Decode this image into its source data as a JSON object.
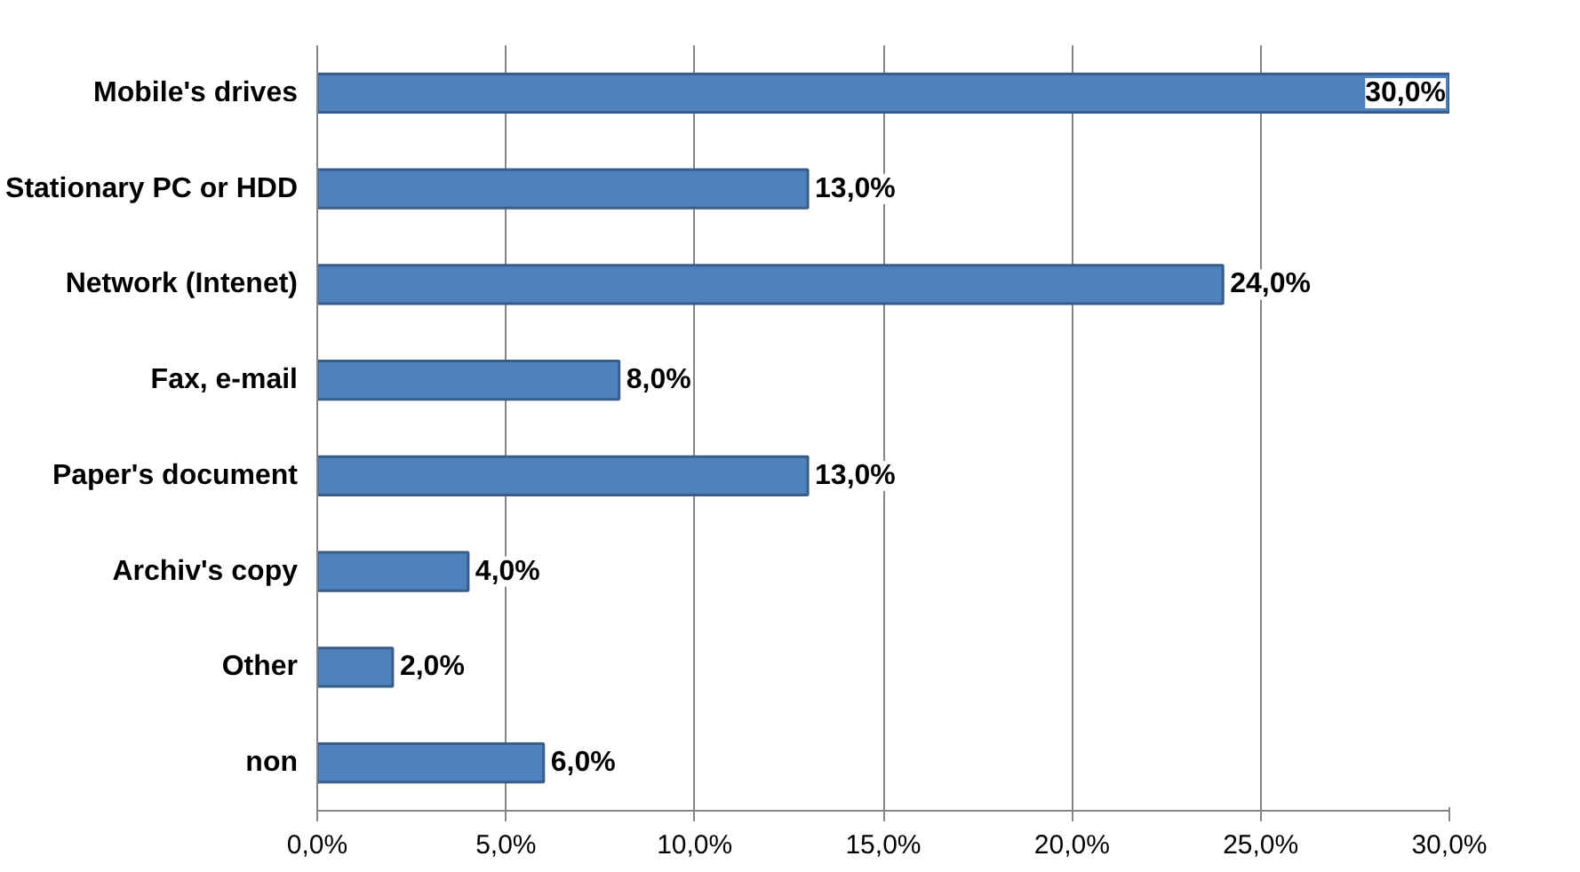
{
  "chart_data": {
    "type": "bar",
    "orientation": "horizontal",
    "categories": [
      "Mobile's drives",
      "Stationary PC or HDD",
      "Network (Intenet)",
      "Fax, e-mail",
      "Paper's document",
      "Archiv's copy",
      "Other",
      "non"
    ],
    "values": [
      30,
      13,
      24,
      8,
      13,
      4,
      2,
      6
    ],
    "value_labels": [
      "30,0%",
      "13,0%",
      "24,0%",
      "8,0%",
      "13,0%",
      "4,0%",
      "2,0%",
      "6,0%"
    ],
    "color": "#4f81bd",
    "xlim": [
      0,
      30
    ],
    "xticks": [
      {
        "value": 0,
        "label": "0,0%"
      },
      {
        "value": 5,
        "label": "5,0%"
      },
      {
        "value": 10,
        "label": "10,0%"
      },
      {
        "value": 15,
        "label": "15,0%"
      },
      {
        "value": 20,
        "label": "20,0%"
      },
      {
        "value": 25,
        "label": "25,0%"
      },
      {
        "value": 30,
        "label": "30,0%"
      }
    ],
    "grid": "x"
  }
}
